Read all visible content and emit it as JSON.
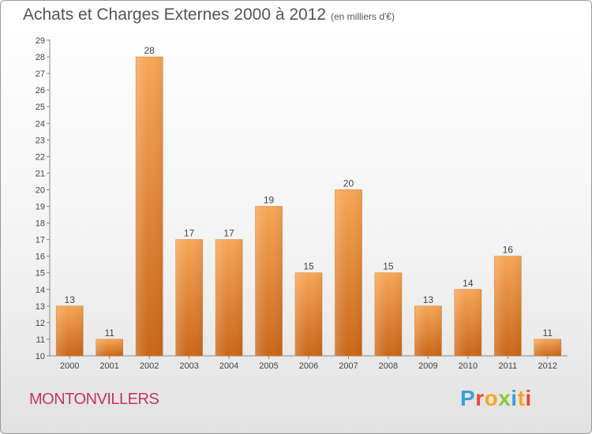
{
  "header": {
    "title": "Achats et Charges Externes 2000 à 2012",
    "unit": "(en milliers d'€)"
  },
  "footer": {
    "commune": "MONTONVILLERS",
    "logo": "Proxiti",
    "logo_colors": [
      "#3aa0d8",
      "#e8473b",
      "#f5a623",
      "#8cc63f",
      "#3aa0d8",
      "#f5a623",
      "#e8473b"
    ]
  },
  "chart_data": {
    "type": "bar",
    "title": "Achats et Charges Externes 2000 à 2012",
    "subtitle": "(en milliers d'€)",
    "xlabel": "",
    "ylabel": "",
    "categories": [
      "2000",
      "2001",
      "2002",
      "2003",
      "2004",
      "2005",
      "2006",
      "2007",
      "2008",
      "2009",
      "2010",
      "2011",
      "2012"
    ],
    "values": [
      13,
      11,
      28,
      17,
      17,
      19,
      15,
      20,
      15,
      13,
      14,
      16,
      11
    ],
    "data_labels": [
      "13",
      "11",
      "28",
      "17",
      "17",
      "19",
      "15",
      "20",
      "15",
      "13",
      "14",
      "16",
      "11"
    ],
    "ylim": [
      10,
      29
    ],
    "yticks": [
      "10",
      "11",
      "12",
      "13",
      "14",
      "15",
      "16",
      "17",
      "18",
      "19",
      "20",
      "21",
      "22",
      "23",
      "24",
      "25",
      "26",
      "27",
      "28",
      "29"
    ],
    "grid": false,
    "legend": "none",
    "bar_color_top": "#f7a656",
    "bar_color_bottom": "#c9671a"
  }
}
